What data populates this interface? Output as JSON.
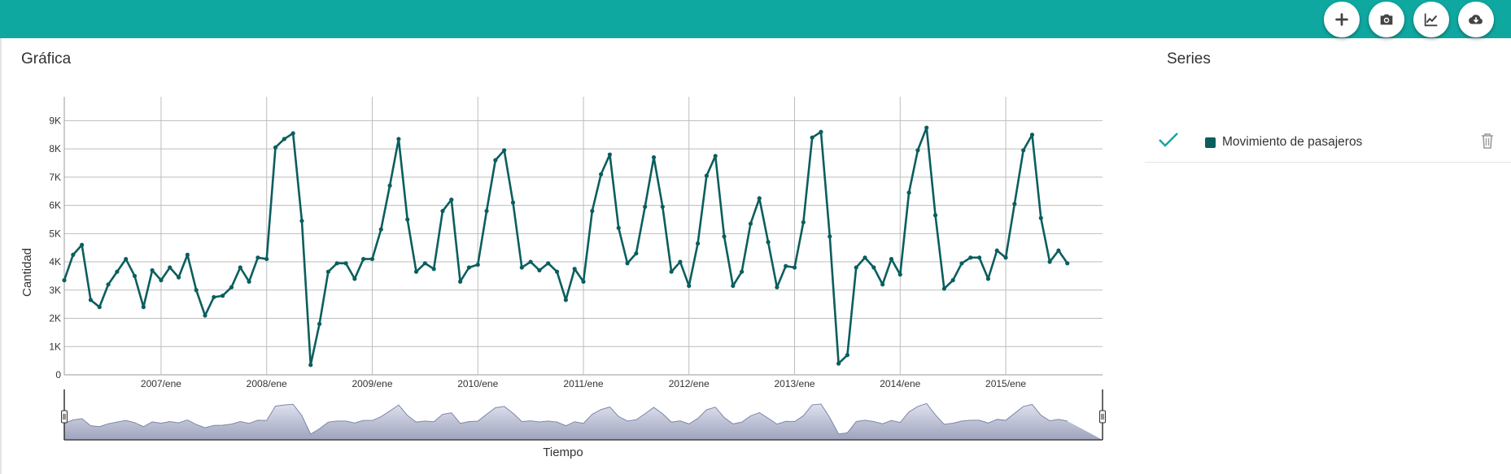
{
  "toolbar": {
    "buttons": [
      {
        "name": "add-button",
        "icon": "plus-icon"
      },
      {
        "name": "screenshot-button",
        "icon": "camera-icon"
      },
      {
        "name": "chart-type-button",
        "icon": "line-chart-icon"
      },
      {
        "name": "download-button",
        "icon": "cloud-download-icon"
      }
    ],
    "accent_color": "#0fa8a0"
  },
  "chart_panel": {
    "title": "Gráfica"
  },
  "series_panel": {
    "title": "Series",
    "items": [
      {
        "label": "Movimiento de pasajeros",
        "color": "#0b5e5e",
        "checked": true
      }
    ]
  },
  "chart_data": {
    "type": "line",
    "title": "",
    "xlabel": "Tiempo",
    "ylabel": "Cantidad",
    "x_start": "2006-02",
    "x_end": "2015-12",
    "x_ticks": [
      "2007/ene",
      "2008/ene",
      "2009/ene",
      "2010/ene",
      "2011/ene",
      "2012/ene",
      "2013/ene",
      "2014/ene",
      "2015/ene"
    ],
    "y_ticks": [
      "0",
      "1K",
      "2K",
      "3K",
      "4K",
      "5K",
      "6K",
      "7K",
      "8K",
      "9K"
    ],
    "ylim": [
      0,
      9500
    ],
    "grid": true,
    "series": [
      {
        "name": "Movimiento de pasajeros",
        "color": "#0b5e5e",
        "values": [
          3350,
          4250,
          4600,
          2650,
          2400,
          3200,
          3650,
          4100,
          3500,
          2400,
          3700,
          3350,
          3800,
          3450,
          4250,
          3000,
          2100,
          2750,
          2800,
          3100,
          3800,
          3300,
          4150,
          4100,
          8050,
          8350,
          8550,
          5450,
          350,
          1800,
          3650,
          3950,
          3950,
          3400,
          4100,
          4100,
          5150,
          6700,
          8350,
          5500,
          3650,
          3950,
          3750,
          5800,
          6200,
          3300,
          3800,
          3900,
          5800,
          7600,
          7950,
          6100,
          3800,
          4000,
          3700,
          3950,
          3650,
          2650,
          3750,
          3300,
          5800,
          7100,
          7800,
          5200,
          3950,
          4300,
          5950,
          7700,
          5950,
          3650,
          4000,
          3150,
          4650,
          7050,
          7750,
          4900,
          3150,
          3650,
          5350,
          6250,
          4700,
          3100,
          3850,
          3800,
          5400,
          8400,
          8600,
          4900,
          400,
          700,
          3800,
          4150,
          3800,
          3200,
          4100,
          3550,
          6450,
          7950,
          8750,
          5650,
          3050,
          3350,
          3950,
          4150,
          4150,
          3400,
          4400,
          4150,
          6050,
          7950,
          8500,
          5550,
          4000,
          4400,
          3950
        ]
      }
    ]
  }
}
